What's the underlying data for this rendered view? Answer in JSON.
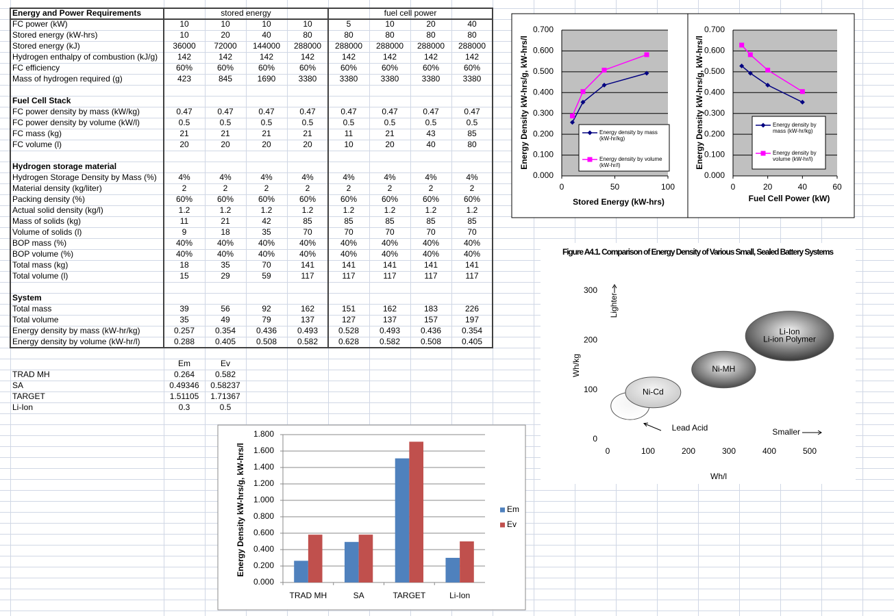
{
  "table": {
    "title": "Energy and Power Requirements",
    "groups": [
      "stored energy",
      "fuel cell power"
    ],
    "sections": [
      {
        "rows": [
          [
            "FC power (kW)",
            "10",
            "10",
            "10",
            "10",
            "5",
            "10",
            "20",
            "40"
          ],
          [
            "Stored energy (kW-hrs)",
            "10",
            "20",
            "40",
            "80",
            "80",
            "80",
            "80",
            "80"
          ],
          [
            "Stored energy (kJ)",
            "36000",
            "72000",
            "144000",
            "288000",
            "288000",
            "288000",
            "288000",
            "288000"
          ],
          [
            "Hydrogen enthalpy of combustion (kJ/g)",
            "142",
            "142",
            "142",
            "142",
            "142",
            "142",
            "142",
            "142"
          ],
          [
            "FC efficiency",
            "60%",
            "60%",
            "60%",
            "60%",
            "60%",
            "60%",
            "60%",
            "60%"
          ],
          [
            "Mass of hydrogen required (g)",
            "423",
            "845",
            "1690",
            "3380",
            "3380",
            "3380",
            "3380",
            "3380"
          ]
        ]
      },
      {
        "heading": "Fuel Cell Stack",
        "rows": [
          [
            "FC power density by mass (kW/kg)",
            "0.47",
            "0.47",
            "0.47",
            "0.47",
            "0.47",
            "0.47",
            "0.47",
            "0.47"
          ],
          [
            "FC power density by volume (kW/l)",
            "0.5",
            "0.5",
            "0.5",
            "0.5",
            "0.5",
            "0.5",
            "0.5",
            "0.5"
          ],
          [
            "FC mass (kg)",
            "21",
            "21",
            "21",
            "21",
            "11",
            "21",
            "43",
            "85"
          ],
          [
            "FC volume (l)",
            "20",
            "20",
            "20",
            "20",
            "10",
            "20",
            "40",
            "80"
          ]
        ]
      },
      {
        "heading": "Hydrogen storage material",
        "rows": [
          [
            "Hydrogen Storage Density by Mass (%)",
            "4%",
            "4%",
            "4%",
            "4%",
            "4%",
            "4%",
            "4%",
            "4%"
          ],
          [
            "Material density (kg/liter)",
            "2",
            "2",
            "2",
            "2",
            "2",
            "2",
            "2",
            "2"
          ],
          [
            "Packing density (%)",
            "60%",
            "60%",
            "60%",
            "60%",
            "60%",
            "60%",
            "60%",
            "60%"
          ],
          [
            "Actual solid density (kg/l)",
            "1.2",
            "1.2",
            "1.2",
            "1.2",
            "1.2",
            "1.2",
            "1.2",
            "1.2"
          ],
          [
            "Mass of solids (kg)",
            "11",
            "21",
            "42",
            "85",
            "85",
            "85",
            "85",
            "85"
          ],
          [
            "Volume of solids (l)",
            "9",
            "18",
            "35",
            "70",
            "70",
            "70",
            "70",
            "70"
          ],
          [
            "BOP mass (%)",
            "40%",
            "40%",
            "40%",
            "40%",
            "40%",
            "40%",
            "40%",
            "40%"
          ],
          [
            "BOP volume (%)",
            "40%",
            "40%",
            "40%",
            "40%",
            "40%",
            "40%",
            "40%",
            "40%"
          ],
          [
            "Total mass (kg)",
            "18",
            "35",
            "70",
            "141",
            "141",
            "141",
            "141",
            "141"
          ],
          [
            "Total volume (l)",
            "15",
            "29",
            "59",
            "117",
            "117",
            "117",
            "117",
            "117"
          ]
        ]
      },
      {
        "heading": "System",
        "rows": [
          [
            "Total mass",
            "39",
            "56",
            "92",
            "162",
            "151",
            "162",
            "183",
            "226"
          ],
          [
            "Total volume",
            "35",
            "49",
            "79",
            "137",
            "127",
            "137",
            "157",
            "197"
          ],
          [
            "Energy density by mass (kW-hr/kg)",
            "0.257",
            "0.354",
            "0.436",
            "0.493",
            "0.528",
            "0.493",
            "0.436",
            "0.354"
          ],
          [
            "Energy density by volume (kW-hr/l)",
            "0.288",
            "0.405",
            "0.508",
            "0.582",
            "0.628",
            "0.582",
            "0.508",
            "0.405"
          ]
        ]
      }
    ]
  },
  "summary": {
    "columns": [
      "Em",
      "Ev"
    ],
    "rows": [
      [
        "TRAD MH",
        "0.264",
        "0.582"
      ],
      [
        "SA",
        "0.49346",
        "0.58237"
      ],
      [
        "TARGET",
        "1.51105",
        "1.71367"
      ],
      [
        "Li-Ion",
        "0.3",
        "0.5"
      ]
    ]
  },
  "chart_data": [
    {
      "type": "line",
      "x_label": "Stored Energy (kW-hrs)",
      "y_label": "Energy Density kW-hrs/g, kW-hrs/l",
      "x": [
        10,
        20,
        40,
        80
      ],
      "series": [
        {
          "name": "Energy density by mass (kW-hr/kg)",
          "color": "#000080",
          "marker": "diamond",
          "values": [
            0.257,
            0.354,
            0.436,
            0.493
          ]
        },
        {
          "name": "Energy density by volume (kW-hr/l)",
          "color": "#ff00ff",
          "marker": "square",
          "values": [
            0.288,
            0.405,
            0.508,
            0.582
          ]
        }
      ],
      "xlim": [
        0,
        100
      ],
      "xticks": [
        0,
        50,
        100
      ],
      "ylim": [
        0,
        0.7
      ],
      "yticks": [
        {
          "value": 0,
          "label": "0.000"
        },
        {
          "value": 0.1,
          "label": "0.100"
        },
        {
          "value": 0.2,
          "label": "0.200"
        },
        {
          "value": 0.3,
          "label": "0.300"
        },
        {
          "value": 0.4,
          "label": "0.400"
        },
        {
          "value": 0.5,
          "label": "0.500"
        },
        {
          "value": 0.6,
          "label": "0.600"
        },
        {
          "value": 0.7,
          "label": "0.700"
        }
      ],
      "grid": true,
      "background": "#c0c0c0"
    },
    {
      "type": "line",
      "x_label": "Fuel Cell Power (kW)",
      "y_label": "Energy Density kW-hrs/g, kW-hrs/l",
      "x": [
        5,
        10,
        20,
        40
      ],
      "series": [
        {
          "name": "Energy density by mass (kW-hr/kg)",
          "color": "#000080",
          "marker": "diamond",
          "values": [
            0.528,
            0.493,
            0.436,
            0.354
          ]
        },
        {
          "name": "Energy density by volume (kW-hr/l)",
          "color": "#ff00ff",
          "marker": "square",
          "values": [
            0.628,
            0.582,
            0.508,
            0.405
          ]
        }
      ],
      "xlim": [
        0,
        60
      ],
      "xticks": [
        0,
        20,
        40,
        60
      ],
      "ylim": [
        0,
        0.7
      ],
      "yticks": [
        {
          "value": 0,
          "label": "0.000"
        },
        {
          "value": 0.1,
          "label": "0.100"
        },
        {
          "value": 0.2,
          "label": "0.200"
        },
        {
          "value": 0.3,
          "label": "0.300"
        },
        {
          "value": 0.4,
          "label": "0.400"
        },
        {
          "value": 0.5,
          "label": "0.500"
        },
        {
          "value": 0.6,
          "label": "0.600"
        },
        {
          "value": 0.7,
          "label": "0.700"
        }
      ],
      "grid": true,
      "background": "#c0c0c0"
    },
    {
      "type": "bar",
      "y_label": "Energy Density kW-hrs/g, kW-hrs/l",
      "categories": [
        "TRAD MH",
        "SA",
        "TARGET",
        "Li-Ion"
      ],
      "series": [
        {
          "name": "Em",
          "color": "#4f81bd",
          "values": [
            0.264,
            0.49346,
            1.51105,
            0.3
          ]
        },
        {
          "name": "Ev",
          "color": "#c0504d",
          "values": [
            0.582,
            0.58237,
            1.71367,
            0.5
          ]
        }
      ],
      "ylim": [
        0,
        1.8
      ],
      "yticks": [
        {
          "value": 0,
          "label": "0.000"
        },
        {
          "value": 0.2,
          "label": "0.200"
        },
        {
          "value": 0.4,
          "label": "0.400"
        },
        {
          "value": 0.6,
          "label": "0.600"
        },
        {
          "value": 0.8,
          "label": "0.800"
        },
        {
          "value": 1,
          "label": "1.000"
        },
        {
          "value": 1.2,
          "label": "1.200"
        },
        {
          "value": 1.4,
          "label": "1.400"
        },
        {
          "value": 1.6,
          "label": "1.600"
        },
        {
          "value": 1.8,
          "label": "1.800"
        }
      ],
      "grid": true
    },
    {
      "type": "bubble",
      "title": "Figure A4.1. Comparison of Energy Density of Various Small, Sealed Battery Systems",
      "x_label": "Wh/l",
      "y_label": "Wh/kg",
      "annotations": [
        "Lighter",
        "Smaller"
      ],
      "regions": [
        {
          "labels": [
            "Lead Acid"
          ],
          "color": "#ffffff",
          "x": [
            8,
            103
          ],
          "y": [
            40,
            95
          ]
        },
        {
          "labels": [
            "Ni-Cd"
          ],
          "color": "#c8c8c8",
          "x": [
            44,
            181
          ],
          "y": [
            64,
            126
          ]
        },
        {
          "labels": [
            "Ni-MH"
          ],
          "color": "#4a4a4a",
          "x": [
            208,
            366
          ],
          "y": [
            104,
            178
          ]
        },
        {
          "labels": [
            "Li-Ion",
            "Li-ion Polymer"
          ],
          "color": "#3a3a3a",
          "x": [
            341,
            559
          ],
          "y": [
            159,
            259
          ]
        }
      ],
      "xlim": [
        0,
        500
      ],
      "xticks": [
        0,
        100,
        200,
        300,
        400,
        500
      ],
      "ylim": [
        0,
        300
      ],
      "yticks": [
        0,
        100,
        200,
        300
      ]
    }
  ]
}
